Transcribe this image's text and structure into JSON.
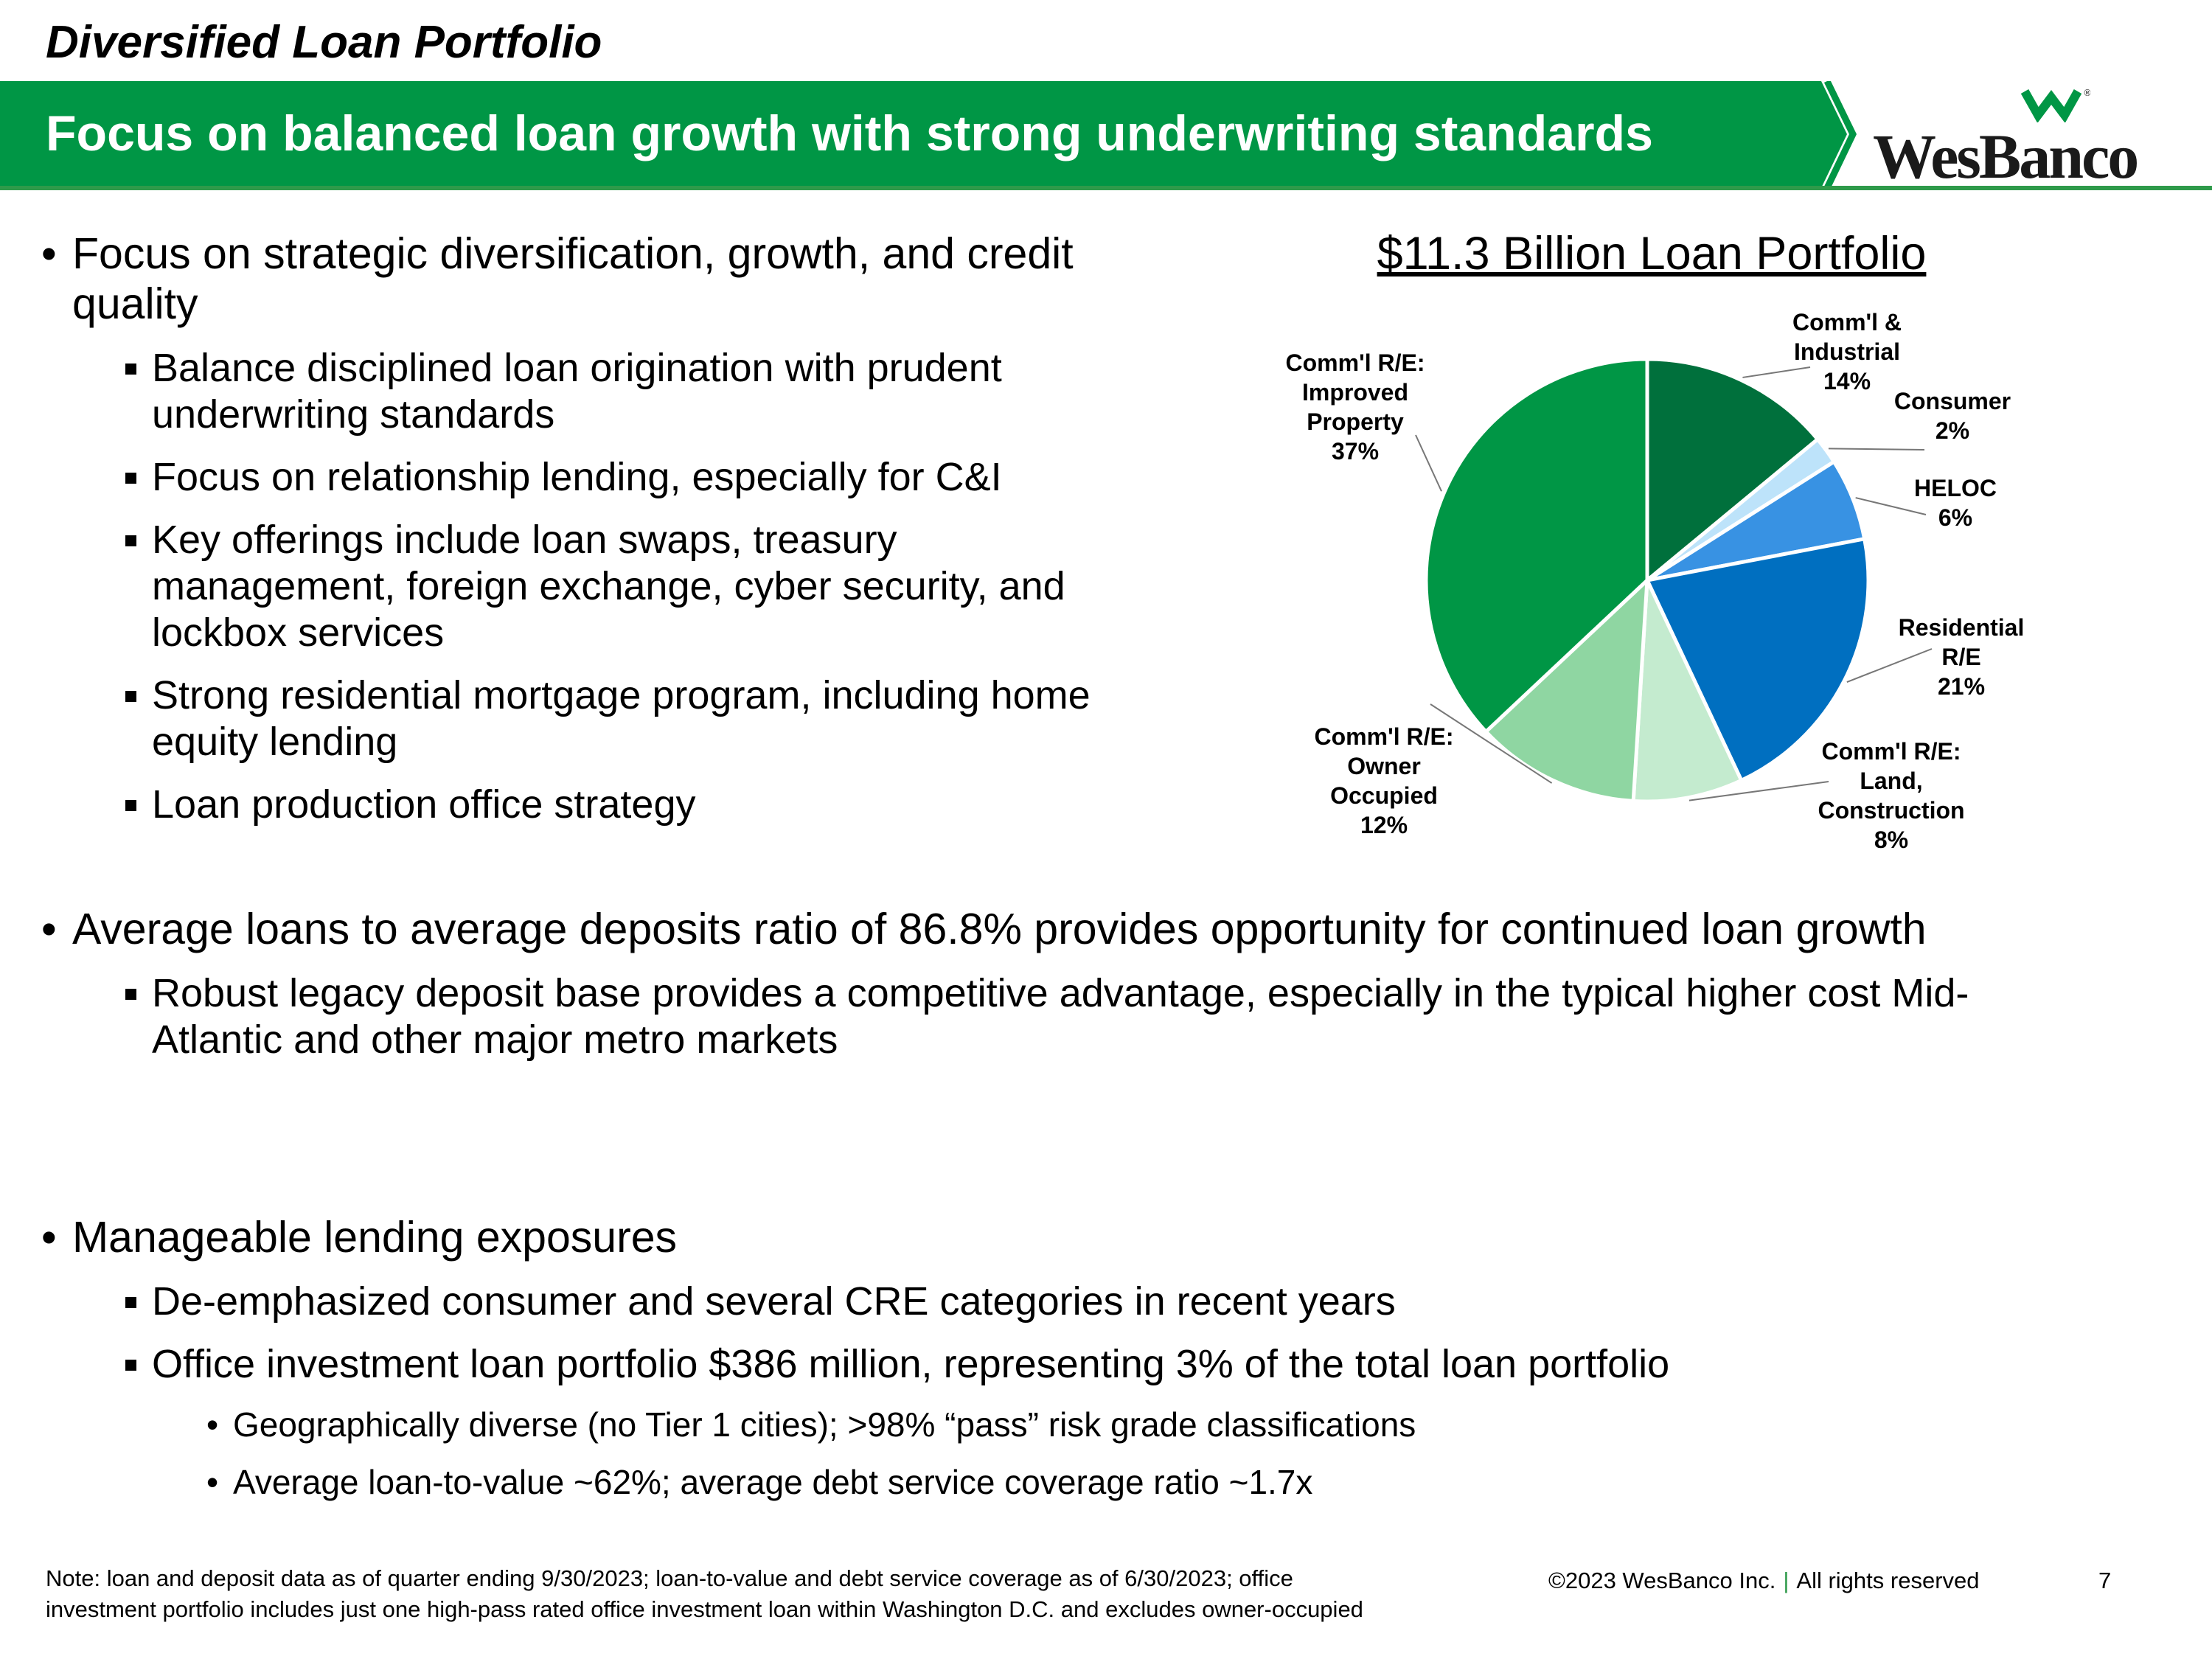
{
  "header": {
    "kicker": "Diversified Loan Portfolio",
    "title": "Focus on balanced loan growth with strong underwriting standards",
    "logo_text": "WesBanco",
    "brand_green": "#009645"
  },
  "bullets": {
    "b1": {
      "text": "Focus on strategic diversification, growth, and credit quality",
      "subs": [
        "Balance disciplined loan origination with prudent underwriting standards",
        "Focus on relationship lending, especially for C&I",
        "Key offerings include loan swaps, treasury management, foreign exchange, cyber security, and lockbox services",
        "Strong residential mortgage program, including home equity lending",
        "Loan production office strategy"
      ]
    },
    "b2": {
      "text": "Average loans to average deposits ratio of 86.8% provides opportunity for continued loan growth",
      "subs": [
        "Robust legacy deposit base provides a competitive advantage, especially in the typical higher cost Mid-Atlantic and other major metro markets"
      ]
    },
    "b3": {
      "text": "Manageable lending exposures",
      "subs": [
        "De-emphasized consumer and several CRE categories in recent years",
        "Office investment loan portfolio $386 million, representing 3% of the total loan portfolio"
      ],
      "subsubs": [
        "Geographically diverse (no Tier 1 cities); >98% “pass” risk grade classifications",
        "Average loan-to-value ~62%; average debt service coverage ratio ~1.7x"
      ]
    }
  },
  "chart_data": {
    "type": "pie",
    "title": "$11.3 Billion Loan Portfolio",
    "slices": [
      {
        "label": [
          "Comm'l &",
          "Industrial"
        ],
        "value": 14,
        "pct_label": "14%",
        "color": "#00703C"
      },
      {
        "label": [
          "Consumer"
        ],
        "value": 2,
        "pct_label": "2%",
        "color": "#BDE3FA"
      },
      {
        "label": [
          "HELOC"
        ],
        "value": 6,
        "pct_label": "6%",
        "color": "#3892E3"
      },
      {
        "label": [
          "Residential",
          "R/E"
        ],
        "value": 21,
        "pct_label": "21%",
        "color": "#006FC0"
      },
      {
        "label": [
          "Comm'l R/E:",
          "Land,",
          "Construction"
        ],
        "value": 8,
        "pct_label": "8%",
        "color": "#C4EBCF"
      },
      {
        "label": [
          "Comm'l R/E:",
          "Owner",
          "Occupied"
        ],
        "value": 12,
        "pct_label": "12%",
        "color": "#8FD6A2"
      },
      {
        "label": [
          "Comm'l R/E:",
          "Improved",
          "Property"
        ],
        "value": 37,
        "pct_label": "37%",
        "color": "#009645"
      }
    ],
    "legend": "none, labels outside slices with leader lines"
  },
  "footer": {
    "note_line1": "Note: loan and deposit data as of quarter ending 9/30/2023; loan-to-value and debt service coverage as of 6/30/2023; office",
    "note_line2": "investment portfolio includes just one high-pass rated office investment loan within Washington D.C. and excludes owner-occupied",
    "copyright": "©2023 WesBanco Inc.",
    "separator": "|",
    "rights": "All rights reserved",
    "page_number": "7"
  }
}
